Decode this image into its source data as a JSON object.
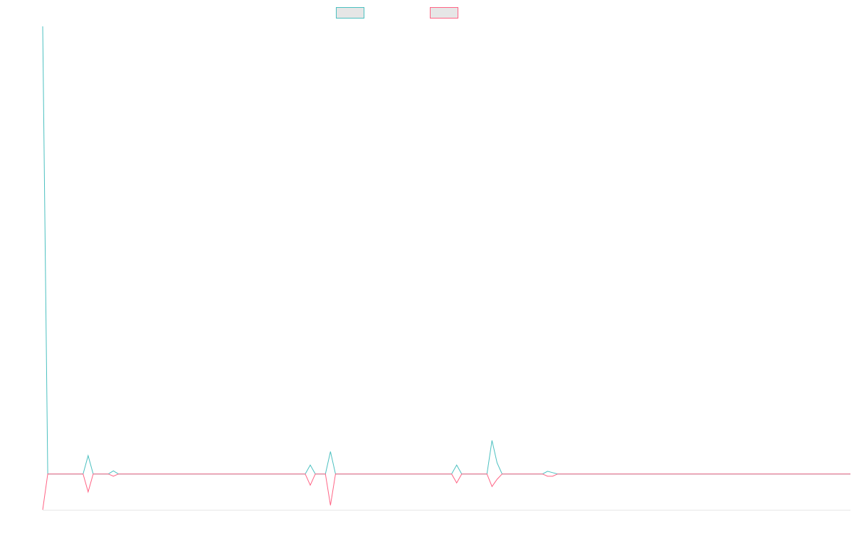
{
  "chart_data": {
    "type": "line",
    "series": [
      {
        "color": "#4bc0c0",
        "values": [
          100,
          0,
          0,
          0,
          0,
          0,
          0,
          0,
          0,
          4.1,
          0,
          0,
          0,
          0,
          0.7,
          0,
          0,
          0,
          0,
          0,
          0,
          0,
          0,
          0,
          0,
          0,
          0,
          0,
          0,
          0,
          0,
          0,
          0,
          0,
          0,
          0,
          0,
          0,
          0,
          0,
          0,
          0,
          0,
          0,
          0,
          0,
          0,
          0,
          0,
          0,
          0,
          0,
          0,
          2,
          0,
          0,
          0,
          5,
          0,
          0,
          0,
          0,
          0,
          0,
          0,
          0,
          0,
          0,
          0,
          0,
          0,
          0,
          0,
          0,
          0,
          0,
          0,
          0,
          0,
          0,
          0,
          0,
          2,
          0,
          0,
          0,
          0,
          0,
          0,
          7.5,
          2.5,
          0,
          0,
          0,
          0,
          0,
          0,
          0,
          0,
          0,
          0.6,
          0.3,
          0,
          0,
          0,
          0,
          0,
          0,
          0,
          0,
          0,
          0,
          0,
          0,
          0,
          0,
          0,
          0,
          0,
          0,
          0,
          0,
          0,
          0,
          0,
          0,
          0,
          0,
          0,
          0,
          0,
          0,
          0,
          0,
          0,
          0,
          0,
          0,
          0,
          0,
          0,
          0,
          0,
          0,
          0,
          0,
          0,
          0,
          0,
          0,
          0,
          0,
          0,
          0,
          0,
          0,
          0,
          0,
          0,
          0,
          0
        ]
      },
      {
        "color": "#ff6384",
        "values": [
          -8,
          0,
          0,
          0,
          0,
          0,
          0,
          0,
          0,
          -4,
          0,
          0,
          0,
          0,
          -0.5,
          0,
          0,
          0,
          0,
          0,
          0,
          0,
          0,
          0,
          0,
          0,
          0,
          0,
          0,
          0,
          0,
          0,
          0,
          0,
          0,
          0,
          0,
          0,
          0,
          0,
          0,
          0,
          0,
          0,
          0,
          0,
          0,
          0,
          0,
          0,
          0,
          0,
          0,
          -2.5,
          0,
          0,
          0,
          -7,
          0,
          0,
          0,
          0,
          0,
          0,
          0,
          0,
          0,
          0,
          0,
          0,
          0,
          0,
          0,
          0,
          0,
          0,
          0,
          0,
          0,
          0,
          0,
          0,
          -2,
          0,
          0,
          0,
          0,
          0,
          0,
          -2.8,
          -1.2,
          0,
          0,
          0,
          0,
          0,
          0,
          0,
          0,
          0,
          -0.5,
          -0.5,
          0,
          0,
          0,
          0,
          0,
          0,
          0,
          0,
          0,
          0,
          0,
          0,
          0,
          0,
          0,
          0,
          0,
          0,
          0,
          0,
          0,
          0,
          0,
          0,
          0,
          0,
          0,
          0,
          0,
          0,
          0,
          0,
          0,
          0,
          0,
          0,
          0,
          0,
          0,
          0,
          0,
          0,
          0,
          0,
          0,
          0,
          0,
          0,
          0,
          0,
          0,
          0,
          0,
          0,
          0,
          0,
          0,
          0,
          0
        ]
      }
    ],
    "ylim": [
      -8,
      100
    ]
  }
}
